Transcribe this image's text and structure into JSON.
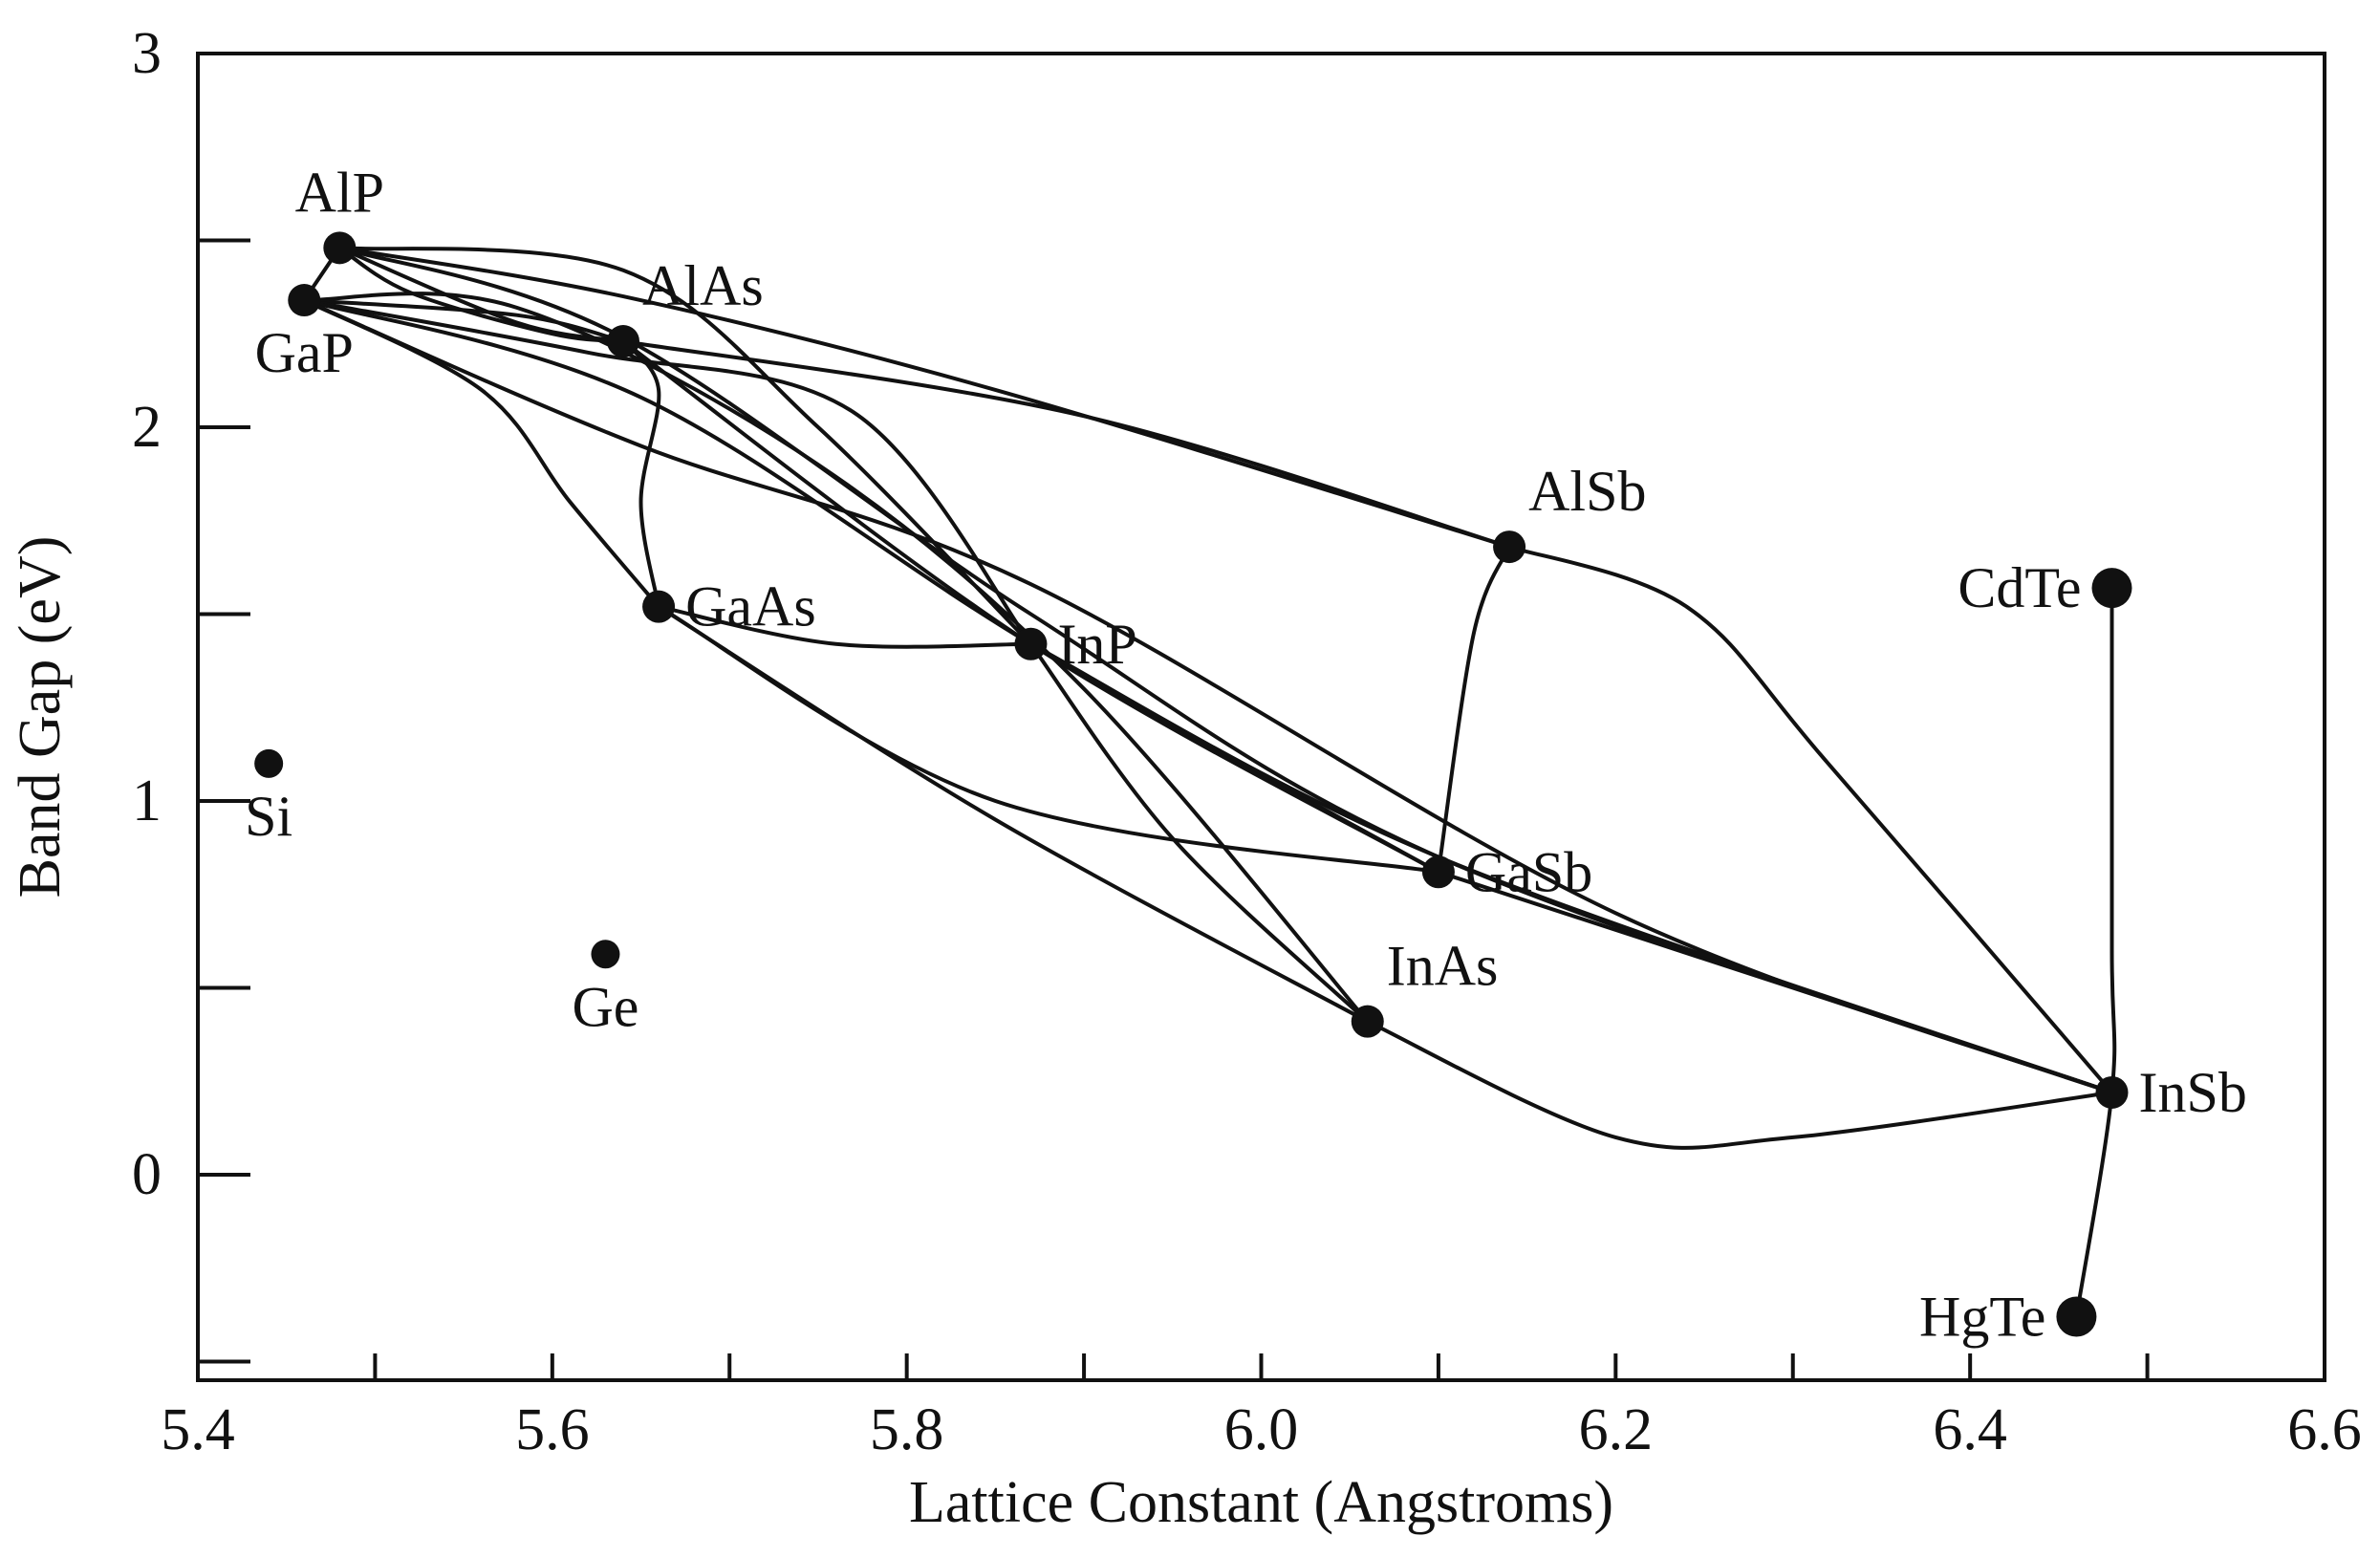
{
  "chart_data": {
    "type": "scatter",
    "title": "",
    "xlabel": "Lattice Constant (Angstroms)",
    "ylabel": "Band Gap (eV)",
    "xlim": [
      5.4,
      6.6
    ],
    "ylim": [
      -0.55,
      3.0
    ],
    "x_ticks": [
      5.4,
      5.6,
      5.8,
      6.0,
      6.2,
      6.4,
      6.6
    ],
    "x_tick_labels": [
      "5.4",
      "5.6",
      "5.8",
      "6.0",
      "6.2",
      "6.4",
      "6.6"
    ],
    "x_minor_ticks": [
      5.5,
      5.7,
      5.9,
      6.1,
      6.3,
      6.5
    ],
    "y_ticks": [
      0,
      1,
      2,
      3
    ],
    "y_tick_labels": [
      "0",
      "1",
      "2",
      "3"
    ],
    "y_minor_ticks": [
      -0.5,
      0.5,
      1.5,
      2.5
    ],
    "grid": false,
    "points": [
      {
        "name": "AlP",
        "x": 5.48,
        "y": 2.48,
        "size": "medium",
        "label_pos": "above"
      },
      {
        "name": "GaP",
        "x": 5.46,
        "y": 2.34,
        "size": "medium",
        "label_pos": "below"
      },
      {
        "name": "AlAs",
        "x": 5.64,
        "y": 2.23,
        "size": "medium",
        "label_pos": "above-right"
      },
      {
        "name": "GaAs",
        "x": 5.66,
        "y": 1.52,
        "size": "medium",
        "label_pos": "right"
      },
      {
        "name": "InP",
        "x": 5.87,
        "y": 1.42,
        "size": "medium",
        "label_pos": "right"
      },
      {
        "name": "AlSb",
        "x": 6.14,
        "y": 1.68,
        "size": "medium",
        "label_pos": "above-right"
      },
      {
        "name": "GaSb",
        "x": 6.1,
        "y": 0.81,
        "size": "medium",
        "label_pos": "right"
      },
      {
        "name": "InAs",
        "x": 6.06,
        "y": 0.41,
        "size": "medium",
        "label_pos": "above-right"
      },
      {
        "name": "InSb",
        "x": 6.48,
        "y": 0.22,
        "size": "medium",
        "label_pos": "right"
      },
      {
        "name": "CdTe",
        "x": 6.48,
        "y": 1.57,
        "size": "large",
        "label_pos": "left"
      },
      {
        "name": "HgTe",
        "x": 6.46,
        "y": -0.38,
        "size": "large",
        "label_pos": "left"
      },
      {
        "name": "Si",
        "x": 5.44,
        "y": 1.1,
        "size": "small",
        "label_pos": "below"
      },
      {
        "name": "Ge",
        "x": 5.63,
        "y": 0.59,
        "size": "small",
        "label_pos": "below"
      }
    ],
    "curves": [
      {
        "name": "AlP-AlAs",
        "points": [
          [
            5.48,
            2.48
          ],
          [
            5.58,
            2.28
          ],
          [
            5.64,
            2.23
          ]
        ]
      },
      {
        "name": "AlP-AlAs-upper",
        "points": [
          [
            5.48,
            2.48
          ],
          [
            5.52,
            2.36
          ],
          [
            5.6,
            2.25
          ],
          [
            5.64,
            2.23
          ]
        ]
      },
      {
        "name": "AlP-AlSb",
        "points": [
          [
            5.48,
            2.48
          ],
          [
            5.64,
            2.35
          ],
          [
            5.85,
            2.1
          ],
          [
            6.14,
            1.68
          ]
        ]
      },
      {
        "name": "AlP-InP",
        "points": [
          [
            5.48,
            2.48
          ],
          [
            5.64,
            2.42
          ],
          [
            5.75,
            2.0
          ],
          [
            5.87,
            1.42
          ]
        ]
      },
      {
        "name": "AlP-InSb",
        "points": [
          [
            5.48,
            2.48
          ],
          [
            5.64,
            2.24
          ],
          [
            5.87,
            1.5
          ],
          [
            6.1,
            0.85
          ],
          [
            6.48,
            0.22
          ]
        ]
      },
      {
        "name": "AlP-GaP",
        "points": [
          [
            5.48,
            2.48
          ],
          [
            5.46,
            2.34
          ]
        ]
      },
      {
        "name": "GaP-AlAs",
        "points": [
          [
            5.46,
            2.34
          ],
          [
            5.58,
            2.3
          ],
          [
            5.64,
            2.23
          ]
        ]
      },
      {
        "name": "GaP-InP",
        "points": [
          [
            5.46,
            2.34
          ],
          [
            5.62,
            2.2
          ],
          [
            5.77,
            2.04
          ],
          [
            5.87,
            1.42
          ]
        ]
      },
      {
        "name": "GaP-GaAs",
        "points": [
          [
            5.46,
            2.34
          ],
          [
            5.56,
            2.1
          ],
          [
            5.61,
            1.8
          ],
          [
            5.66,
            1.52
          ]
        ]
      },
      {
        "name": "GaP-InAs",
        "points": [
          [
            5.46,
            2.34
          ],
          [
            5.58,
            2.32
          ],
          [
            5.75,
            1.9
          ],
          [
            5.9,
            1.3
          ],
          [
            6.06,
            0.41
          ]
        ]
      },
      {
        "name": "GaP-GaSb",
        "points": [
          [
            5.46,
            2.34
          ],
          [
            5.65,
            2.08
          ],
          [
            5.87,
            1.42
          ],
          [
            6.1,
            0.81
          ]
        ]
      },
      {
        "name": "GaP-InSb",
        "points": [
          [
            5.46,
            2.34
          ],
          [
            5.65,
            1.95
          ],
          [
            5.87,
            1.58
          ],
          [
            6.2,
            0.7
          ],
          [
            6.48,
            0.22
          ]
        ]
      },
      {
        "name": "AlAs-GaAs",
        "points": [
          [
            5.64,
            2.23
          ],
          [
            5.66,
            2.1
          ],
          [
            5.65,
            1.8
          ],
          [
            5.66,
            1.52
          ]
        ]
      },
      {
        "name": "AlAs-AlSb",
        "points": [
          [
            5.64,
            2.23
          ],
          [
            5.9,
            2.03
          ],
          [
            6.14,
            1.68
          ]
        ]
      },
      {
        "name": "AlAs-GaSb",
        "points": [
          [
            5.64,
            2.23
          ],
          [
            5.87,
            1.42
          ],
          [
            6.1,
            0.81
          ]
        ]
      },
      {
        "name": "GaAs-InP",
        "points": [
          [
            5.66,
            1.52
          ],
          [
            5.76,
            1.42
          ],
          [
            5.87,
            1.42
          ]
        ]
      },
      {
        "name": "GaAs-GaSb",
        "points": [
          [
            5.66,
            1.52
          ],
          [
            5.85,
            1.0
          ],
          [
            6.1,
            0.81
          ]
        ]
      },
      {
        "name": "GaAs-InAs",
        "points": [
          [
            5.66,
            1.52
          ],
          [
            5.85,
            0.95
          ],
          [
            6.06,
            0.41
          ]
        ]
      },
      {
        "name": "InP-InAs",
        "points": [
          [
            5.87,
            1.42
          ],
          [
            5.95,
            0.9
          ],
          [
            6.06,
            0.41
          ]
        ]
      },
      {
        "name": "InP-InSb",
        "points": [
          [
            5.87,
            1.42
          ],
          [
            6.1,
            0.85
          ],
          [
            6.48,
            0.22
          ]
        ]
      },
      {
        "name": "AlSb-GaSb",
        "points": [
          [
            6.14,
            1.68
          ],
          [
            6.12,
            1.45
          ],
          [
            6.1,
            0.81
          ]
        ]
      },
      {
        "name": "AlSb-InSb",
        "points": [
          [
            6.14,
            1.68
          ],
          [
            6.24,
            1.52
          ],
          [
            6.32,
            1.1
          ],
          [
            6.48,
            0.22
          ]
        ]
      },
      {
        "name": "GaSb-InSb",
        "points": [
          [
            6.1,
            0.81
          ],
          [
            6.3,
            0.5
          ],
          [
            6.48,
            0.22
          ]
        ]
      },
      {
        "name": "InAs-InSb",
        "points": [
          [
            6.06,
            0.41
          ],
          [
            6.2,
            0.1
          ],
          [
            6.3,
            0.1
          ],
          [
            6.48,
            0.22
          ]
        ]
      },
      {
        "name": "CdTe-HgTe",
        "points": [
          [
            6.48,
            1.57
          ],
          [
            6.48,
            0.6
          ],
          [
            6.48,
            0.22
          ],
          [
            6.46,
            -0.38
          ]
        ]
      }
    ]
  }
}
